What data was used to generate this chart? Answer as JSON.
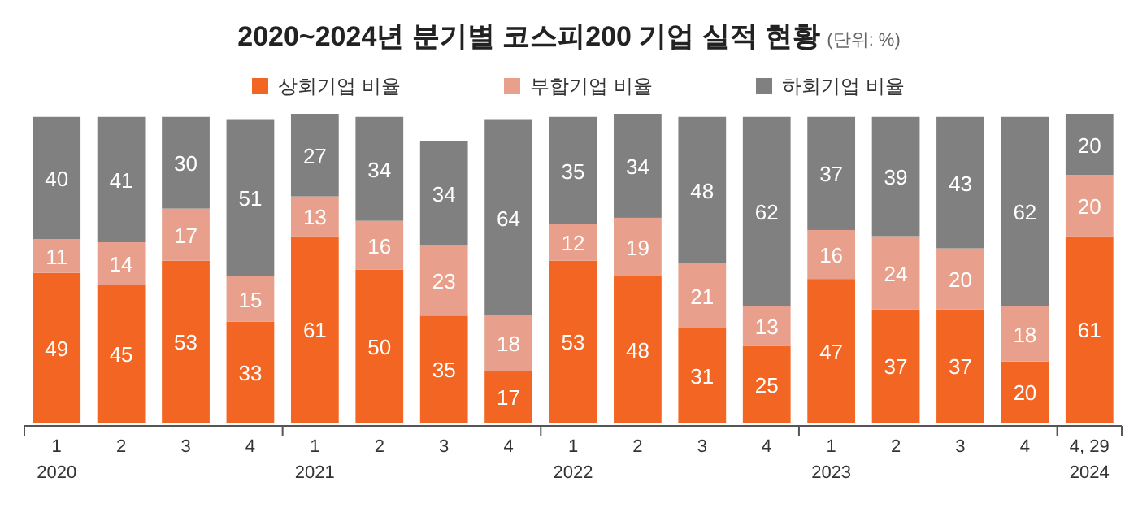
{
  "chart_data": {
    "type": "bar",
    "title": "2020~2024년 분기별 코스피200 기업 실적 현황",
    "subtitle": "(단위: %)",
    "categories": [
      "1",
      "2",
      "3",
      "4",
      "1",
      "2",
      "3",
      "4",
      "1",
      "2",
      "3",
      "4",
      "1",
      "2",
      "3",
      "4",
      "4, 29"
    ],
    "annotations": [
      "2020",
      "2021",
      "2022",
      "2023",
      "2024"
    ],
    "stacked": true,
    "data_labels": true,
    "legend": "top",
    "tick_labels": "x",
    "ylim": [
      0,
      101
    ],
    "series": [
      {
        "name": "상회기업 비율",
        "color": "#f26522",
        "values": [
          49,
          45,
          53,
          33,
          61,
          50,
          35,
          17,
          53,
          48,
          31,
          25,
          47,
          37,
          37,
          20,
          61
        ]
      },
      {
        "name": "부합기업 비율",
        "color": "#e8a08c",
        "values": [
          11,
          14,
          17,
          15,
          13,
          16,
          23,
          18,
          12,
          19,
          21,
          13,
          16,
          24,
          20,
          18,
          20
        ]
      },
      {
        "name": "하회기업 비율",
        "color": "#808080",
        "values": [
          40,
          41,
          30,
          51,
          27,
          34,
          34,
          64,
          35,
          34,
          48,
          62,
          37,
          39,
          43,
          62,
          20
        ]
      }
    ]
  }
}
